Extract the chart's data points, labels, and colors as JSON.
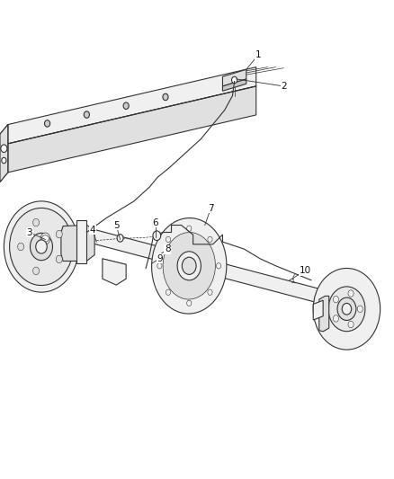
{
  "background_color": "#ffffff",
  "line_color": "#333333",
  "fill_light": "#f0f0f0",
  "fill_mid": "#e0e0e0",
  "fill_dark": "#c8c8c8",
  "figsize": [
    4.38,
    5.33
  ],
  "dpi": 100,
  "callouts": [
    {
      "num": "1",
      "point": [
        0.625,
        0.855
      ],
      "label": [
        0.655,
        0.885
      ]
    },
    {
      "num": "2",
      "point": [
        0.6,
        0.835
      ],
      "label": [
        0.72,
        0.82
      ]
    },
    {
      "num": "3",
      "point": [
        0.115,
        0.5
      ],
      "label": [
        0.075,
        0.515
      ]
    },
    {
      "num": "4",
      "point": [
        0.245,
        0.495
      ],
      "label": [
        0.235,
        0.52
      ]
    },
    {
      "num": "5",
      "point": [
        0.305,
        0.5
      ],
      "label": [
        0.295,
        0.53
      ]
    },
    {
      "num": "6",
      "point": [
        0.395,
        0.505
      ],
      "label": [
        0.395,
        0.535
      ]
    },
    {
      "num": "7",
      "point": [
        0.52,
        0.53
      ],
      "label": [
        0.535,
        0.565
      ]
    },
    {
      "num": "8",
      "point": [
        0.4,
        0.465
      ],
      "label": [
        0.425,
        0.48
      ]
    },
    {
      "num": "9",
      "point": [
        0.385,
        0.45
      ],
      "label": [
        0.405,
        0.46
      ]
    },
    {
      "num": "10",
      "point": [
        0.735,
        0.415
      ],
      "label": [
        0.775,
        0.435
      ]
    }
  ]
}
